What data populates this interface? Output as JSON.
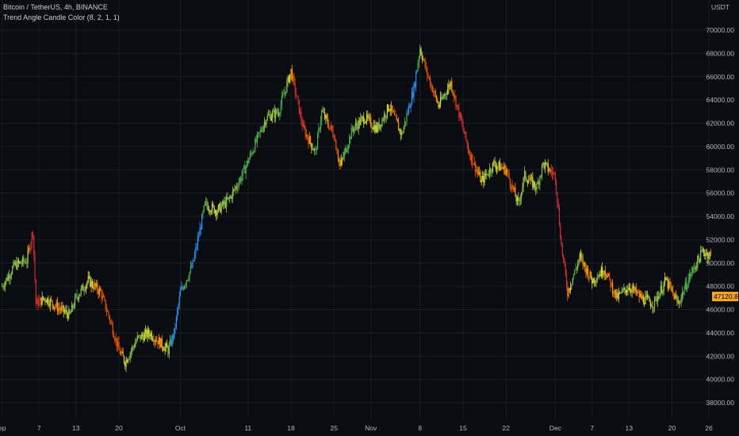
{
  "header": {
    "symbol_line": "Bitcoin / TetherUS, 4h, BINANCE",
    "indicator_line": "Trend Angle Candle Color (8, 2, 1, 1)"
  },
  "axis": {
    "unit": "USDT"
  },
  "last_price_label": "47120.87",
  "colors": {
    "background": "#0b0b12",
    "grid": "#1a1c26",
    "price_tag": "#f5a623",
    "trend_palette": [
      "#d32f2f",
      "#e65100",
      "#ff9800",
      "#cddc39",
      "#8bc34a",
      "#4caf50",
      "#2196f3"
    ]
  },
  "chart_data": {
    "type": "candlestick",
    "title": "Bitcoin / TetherUS, 4h, BINANCE",
    "ylabel": "USDT",
    "ylim": [
      37000,
      71000
    ],
    "y_ticks": [
      38000,
      40000,
      42000,
      44000,
      46000,
      48000,
      50000,
      52000,
      54000,
      56000,
      58000,
      60000,
      62000,
      64000,
      66000,
      68000,
      70000
    ],
    "y_tick_labels": [
      "38000.00",
      "40000.00",
      "42000.00",
      "44000.00",
      "46000.00",
      "48000.00",
      "50000.00",
      "52000.00",
      "54000.00",
      "56000.00",
      "58000.00",
      "60000.00",
      "62000.00",
      "64000.00",
      "66000.00",
      "68000.00",
      "70000.00"
    ],
    "x_ticks": [
      {
        "label": "ep",
        "day": 1
      },
      {
        "label": "7",
        "day": 7
      },
      {
        "label": "13",
        "day": 13
      },
      {
        "label": "20",
        "day": 20
      },
      {
        "label": "Oct",
        "day": 30
      },
      {
        "label": "11",
        "day": 41
      },
      {
        "label": "18",
        "day": 48
      },
      {
        "label": "25",
        "day": 55
      },
      {
        "label": "Nov",
        "day": 61
      },
      {
        "label": "8",
        "day": 69
      },
      {
        "label": "15",
        "day": 76
      },
      {
        "label": "22",
        "day": 83
      },
      {
        "label": "Dec",
        "day": 91
      },
      {
        "label": "7",
        "day": 97
      },
      {
        "label": "13",
        "day": 103
      },
      {
        "label": "20",
        "day": 110
      },
      {
        "label": "26",
        "day": 116
      }
    ],
    "price_path": [
      [
        1,
        48000
      ],
      [
        3,
        49800
      ],
      [
        5,
        50200
      ],
      [
        6,
        52800
      ],
      [
        6.5,
        46500
      ],
      [
        8,
        47000
      ],
      [
        10,
        46200
      ],
      [
        12,
        45500
      ],
      [
        13,
        47000
      ],
      [
        15,
        48500
      ],
      [
        17,
        47500
      ],
      [
        18.5,
        45200
      ],
      [
        20,
        42500
      ],
      [
        21,
        41500
      ],
      [
        23,
        43500
      ],
      [
        25,
        44000
      ],
      [
        27,
        43000
      ],
      [
        28,
        42500
      ],
      [
        29,
        44000
      ],
      [
        30,
        47500
      ],
      [
        32,
        49800
      ],
      [
        34,
        55000
      ],
      [
        36,
        54500
      ],
      [
        38,
        55500
      ],
      [
        40,
        57500
      ],
      [
        42,
        60000
      ],
      [
        44,
        62500
      ],
      [
        46,
        63000
      ],
      [
        48,
        66500
      ],
      [
        50,
        61500
      ],
      [
        52,
        59500
      ],
      [
        53,
        63000
      ],
      [
        55,
        61000
      ],
      [
        56,
        58300
      ],
      [
        58,
        61500
      ],
      [
        60,
        62500
      ],
      [
        62,
        61500
      ],
      [
        64,
        63500
      ],
      [
        66,
        61000
      ],
      [
        68,
        65000
      ],
      [
        69,
        68500
      ],
      [
        70,
        66500
      ],
      [
        72,
        63500
      ],
      [
        74,
        65500
      ],
      [
        75,
        63500
      ],
      [
        77,
        59500
      ],
      [
        79,
        57000
      ],
      [
        81,
        58500
      ],
      [
        83,
        58000
      ],
      [
        85,
        55000
      ],
      [
        86,
        57500
      ],
      [
        88,
        56500
      ],
      [
        89,
        58500
      ],
      [
        91,
        57500
      ],
      [
        92,
        51500
      ],
      [
        93,
        47500
      ],
      [
        95,
        50500
      ],
      [
        97,
        48500
      ],
      [
        99,
        49500
      ],
      [
        101,
        47000
      ],
      [
        103,
        48000
      ],
      [
        105,
        47000
      ],
      [
        107,
        46500
      ],
      [
        109,
        48500
      ],
      [
        111,
        46500
      ],
      [
        113,
        49000
      ],
      [
        115,
        51000
      ],
      [
        117,
        50500
      ],
      [
        119,
        48500
      ],
      [
        120,
        47120
      ]
    ],
    "last_price": 47120.87
  }
}
